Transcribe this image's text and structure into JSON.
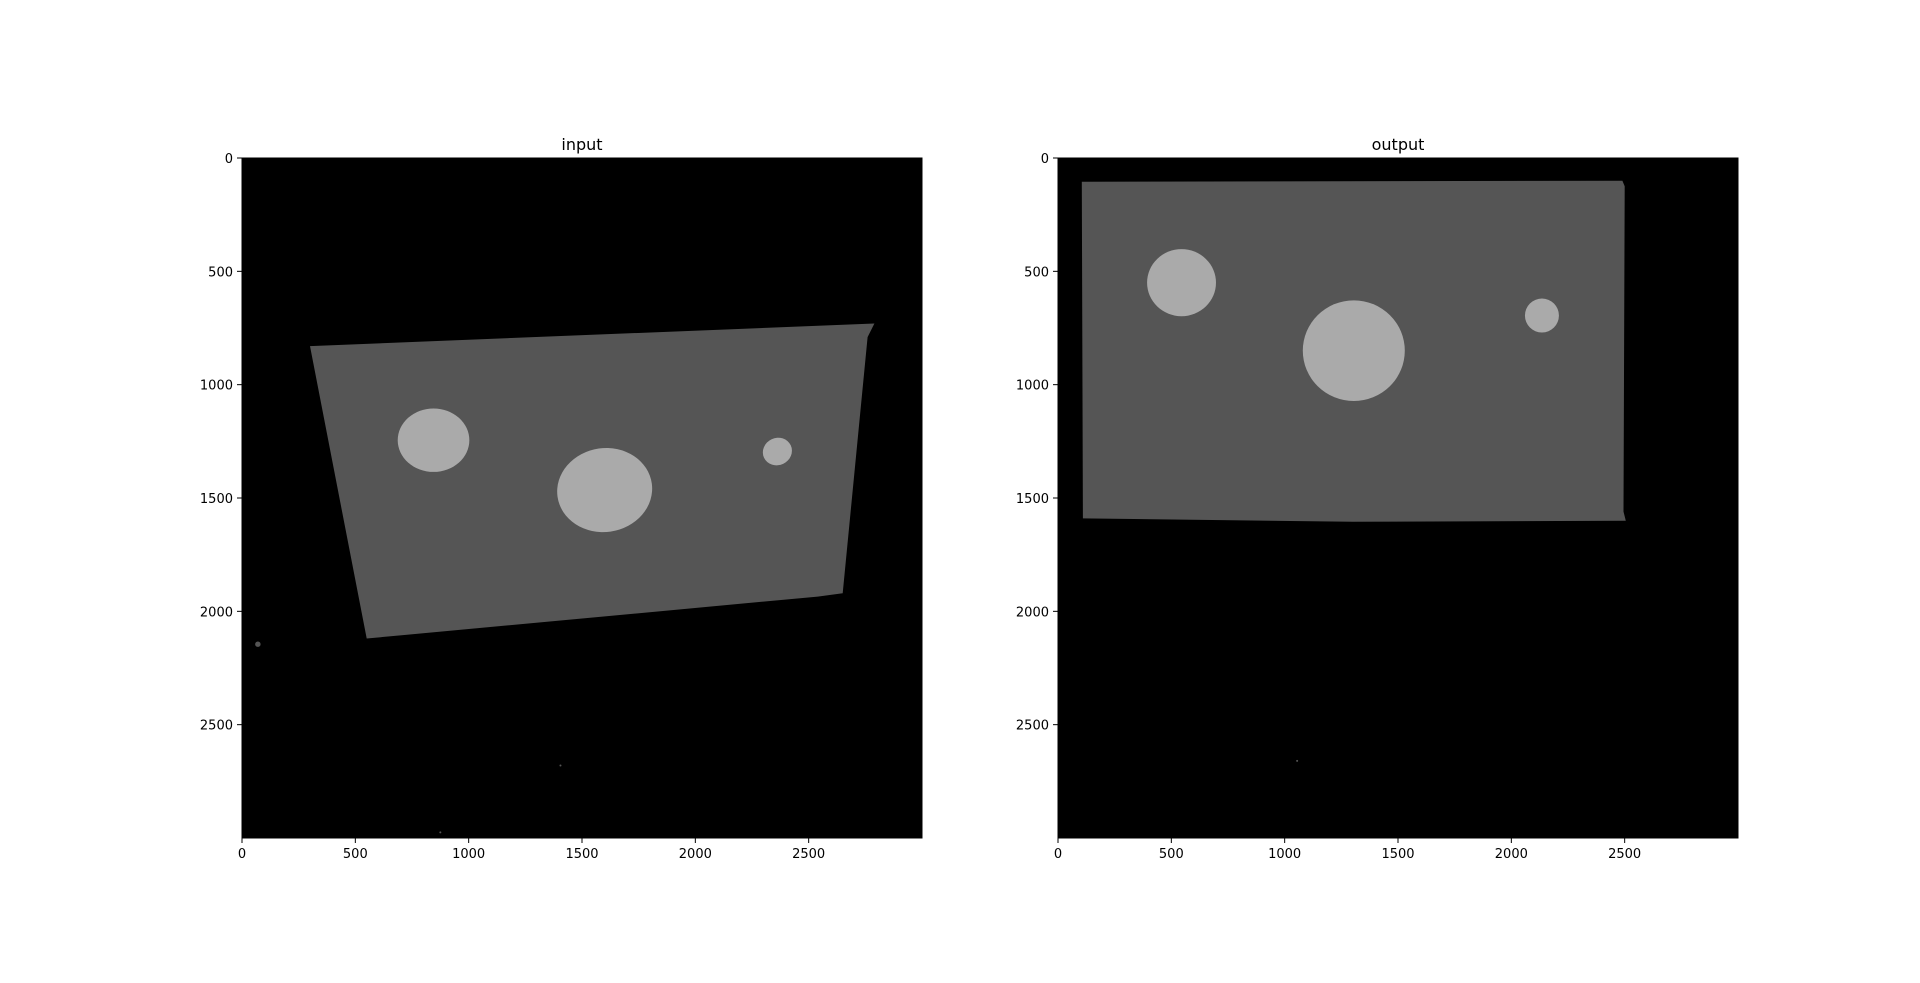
{
  "figure": {
    "background": "#ffffff",
    "colors": {
      "background_region": "#000000",
      "plate": "#555555",
      "holes": "#aaaaaa"
    }
  },
  "panels": [
    {
      "title": "input",
      "xticks": [
        "0",
        "500",
        "1000",
        "1500",
        "2000",
        "2500"
      ],
      "yticks": [
        "0",
        "500",
        "1000",
        "1500",
        "2000",
        "2500"
      ],
      "xlim": [
        0,
        3000
      ],
      "ylim": [
        3000,
        0
      ],
      "plate_polygon": [
        [
          300,
          830
        ],
        [
          2790,
          730
        ],
        [
          2760,
          790
        ],
        [
          2650,
          1920
        ],
        [
          2540,
          1935
        ],
        [
          550,
          2120
        ]
      ],
      "ellipses": [
        {
          "cx": 845,
          "cy": 1245,
          "rx": 158,
          "ry": 140,
          "rot": 0
        },
        {
          "cx": 1600,
          "cy": 1465,
          "rx": 210,
          "ry": 185,
          "rot": -8
        },
        {
          "cx": 2362,
          "cy": 1295,
          "rx": 65,
          "ry": 60,
          "rot": -25
        }
      ],
      "specks": [
        {
          "x": 70,
          "y": 2145,
          "r": 12
        },
        {
          "x": 1405,
          "y": 2680,
          "r": 4
        },
        {
          "x": 875,
          "y": 2975,
          "r": 4
        }
      ]
    },
    {
      "title": "output",
      "xticks": [
        "0",
        "500",
        "1000",
        "1500",
        "2000",
        "2500"
      ],
      "yticks": [
        "0",
        "500",
        "1000",
        "1500",
        "2000",
        "2500"
      ],
      "xlim": [
        0,
        3000
      ],
      "ylim": [
        3000,
        0
      ],
      "plate_polygon": [
        [
          105,
          105
        ],
        [
          2490,
          100
        ],
        [
          2500,
          125
        ],
        [
          2495,
          1560
        ],
        [
          2505,
          1600
        ],
        [
          1300,
          1605
        ],
        [
          110,
          1590
        ]
      ],
      "ellipses": [
        {
          "cx": 545,
          "cy": 550,
          "rx": 152,
          "ry": 148,
          "rot": 0
        },
        {
          "cx": 1305,
          "cy": 850,
          "rx": 225,
          "ry": 222,
          "rot": 0
        },
        {
          "cx": 2135,
          "cy": 695,
          "rx": 75,
          "ry": 75,
          "rot": 0
        }
      ],
      "specks": [
        {
          "x": 1055,
          "y": 2660,
          "r": 4
        }
      ]
    }
  ]
}
